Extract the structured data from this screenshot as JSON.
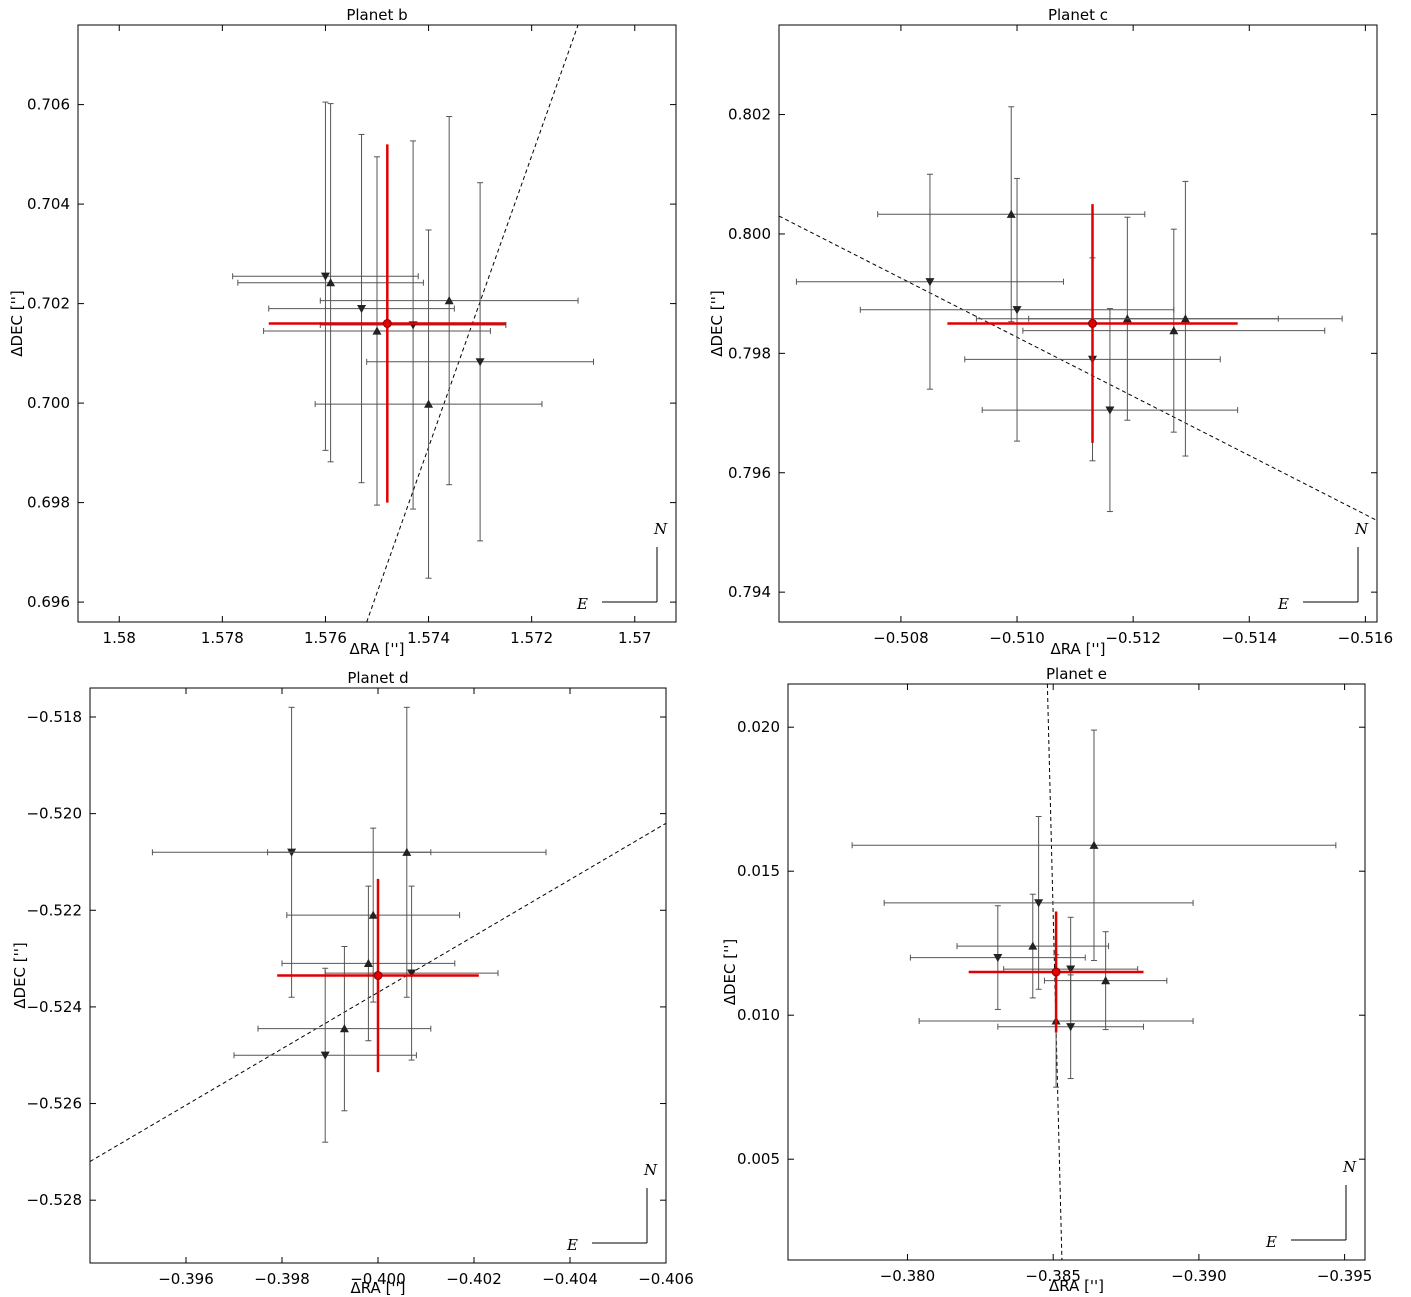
{
  "chart_data": [
    {
      "type": "scatter",
      "title": "Planet b",
      "xlabel": "ΔRA ['']",
      "ylabel": "ΔDEC ['']",
      "xlim": [
        1.5808,
        1.5692
      ],
      "ylim": [
        0.6956,
        0.7076
      ],
      "xticks": [
        1.58,
        1.578,
        1.576,
        1.574,
        1.572,
        1.57
      ],
      "xtick_labels": [
        "1.58",
        "1.578",
        "1.576",
        "1.574",
        "1.572",
        "1.57"
      ],
      "yticks": [
        0.696,
        0.698,
        0.7,
        0.702,
        0.704,
        0.706
      ],
      "ytick_labels": [
        "0.696",
        "0.698",
        "0.700",
        "0.702",
        "0.704",
        "0.706"
      ],
      "compass": {
        "north": "N",
        "east": "E"
      },
      "mean": {
        "x": 1.5748,
        "y": 0.7016,
        "xerr": 0.0023,
        "yerr": 0.0036
      },
      "line": {
        "x1": 1.5752,
        "y1": 0.6956,
        "x2": 1.5711,
        "y2": 0.7076
      },
      "series": [
        {
          "marker": "down",
          "x": 1.576,
          "y": 0.70255,
          "xerr": 0.0018,
          "yerr": 0.0035
        },
        {
          "marker": "up",
          "x": 1.5759,
          "y": 0.70242,
          "xerr": 0.0018,
          "yerr": 0.0036
        },
        {
          "marker": "down",
          "x": 1.5753,
          "y": 0.7019,
          "xerr": 0.0018,
          "yerr": 0.0035
        },
        {
          "marker": "up",
          "x": 1.575,
          "y": 0.70145,
          "xerr": 0.0022,
          "yerr": 0.0035
        },
        {
          "marker": "down",
          "x": 1.5743,
          "y": 0.70157,
          "xerr": 0.0018,
          "yerr": 0.0037
        },
        {
          "marker": "up",
          "x": 1.5736,
          "y": 0.70206,
          "xerr": 0.0025,
          "yerr": 0.0037
        },
        {
          "marker": "down",
          "x": 1.573,
          "y": 0.70083,
          "xerr": 0.0022,
          "yerr": 0.0036
        },
        {
          "marker": "up",
          "x": 1.574,
          "y": 0.69998,
          "xerr": 0.0022,
          "yerr": 0.0035
        }
      ]
    },
    {
      "type": "scatter",
      "title": "Planet c",
      "xlabel": "ΔRA ['']",
      "ylabel": "ΔDEC ['']",
      "xlim": [
        -0.5059,
        -0.5162
      ],
      "ylim": [
        0.7935,
        0.8035
      ],
      "xticks": [
        -0.508,
        -0.51,
        -0.512,
        -0.514,
        -0.516
      ],
      "xtick_labels": [
        "−0.508",
        "−0.510",
        "−0.512",
        "−0.514",
        "−0.516"
      ],
      "yticks": [
        0.794,
        0.796,
        0.798,
        0.8,
        0.802
      ],
      "ytick_labels": [
        "0.794",
        "0.796",
        "0.798",
        "0.800",
        "0.802"
      ],
      "compass": {
        "north": "N",
        "east": "E"
      },
      "mean": {
        "x": -0.5113,
        "y": 0.7985,
        "xerr": 0.0025,
        "yerr": 0.002
      },
      "line": {
        "x1": -0.5059,
        "y1": 0.8003,
        "x2": -0.5162,
        "y2": 0.7952
      },
      "series": [
        {
          "marker": "up",
          "x": -0.5099,
          "y": 0.80033,
          "xerr": 0.0023,
          "yerr": 0.0018
        },
        {
          "marker": "down",
          "x": -0.5085,
          "y": 0.7992,
          "xerr": 0.0023,
          "yerr": 0.0018
        },
        {
          "marker": "down",
          "x": -0.51,
          "y": 0.79873,
          "xerr": 0.0027,
          "yerr": 0.0022
        },
        {
          "marker": "down",
          "x": -0.5113,
          "y": 0.7979,
          "xerr": 0.0022,
          "yerr": 0.0017
        },
        {
          "marker": "down",
          "x": -0.5116,
          "y": 0.79705,
          "xerr": 0.0022,
          "yerr": 0.0017
        },
        {
          "marker": "up",
          "x": -0.5119,
          "y": 0.79858,
          "xerr": 0.0026,
          "yerr": 0.0017
        },
        {
          "marker": "up",
          "x": -0.5127,
          "y": 0.79838,
          "xerr": 0.0026,
          "yerr": 0.0017
        },
        {
          "marker": "up",
          "x": -0.5129,
          "y": 0.79858,
          "xerr": 0.0027,
          "yerr": 0.0023
        }
      ]
    },
    {
      "type": "scatter",
      "title": "Planet d",
      "xlabel": "ΔRA ['']",
      "ylabel": "ΔDEC ['']",
      "xlim": [
        -0.394,
        -0.406
      ],
      "ylim": [
        -0.5293,
        -0.5174
      ],
      "xticks": [
        -0.396,
        -0.398,
        -0.4,
        -0.402,
        -0.404,
        -0.406
      ],
      "xtick_labels": [
        "−0.396",
        "−0.398",
        "−0.400",
        "−0.402",
        "−0.404",
        "−0.406"
      ],
      "yticks": [
        -0.528,
        -0.526,
        -0.524,
        -0.522,
        -0.52,
        -0.518
      ],
      "ytick_labels": [
        "−0.528",
        "−0.526",
        "−0.524",
        "−0.522",
        "−0.520",
        "−0.518"
      ],
      "compass": {
        "north": "N",
        "east": "E"
      },
      "mean": {
        "x": -0.4,
        "y": -0.52335,
        "xerr": 0.0021,
        "yerr": 0.002
      },
      "line": {
        "x1": -0.394,
        "y1": -0.5272,
        "x2": -0.406,
        "y2": -0.5202
      },
      "series": [
        {
          "marker": "down",
          "x": -0.3982,
          "y": -0.5208,
          "xerr": 0.0029,
          "yerr": 0.003
        },
        {
          "marker": "up",
          "x": -0.4006,
          "y": -0.5208,
          "xerr": 0.0029,
          "yerr": 0.003
        },
        {
          "marker": "up",
          "x": -0.3999,
          "y": -0.5221,
          "xerr": 0.0018,
          "yerr": 0.0018
        },
        {
          "marker": "up",
          "x": -0.3998,
          "y": -0.5231,
          "xerr": 0.0018,
          "yerr": 0.0016
        },
        {
          "marker": "down",
          "x": -0.4007,
          "y": -0.5233,
          "xerr": 0.0018,
          "yerr": 0.0018
        },
        {
          "marker": "up",
          "x": -0.3993,
          "y": -0.52445,
          "xerr": 0.0018,
          "yerr": 0.0017
        },
        {
          "marker": "down",
          "x": -0.3989,
          "y": -0.525,
          "xerr": 0.0019,
          "yerr": 0.0018
        }
      ]
    },
    {
      "type": "scatter",
      "title": "Planet e",
      "xlabel": "ΔRA ['']",
      "ylabel": "ΔDEC ['']",
      "xlim": [
        -0.3759,
        -0.3957
      ],
      "ylim": [
        0.0015,
        0.0215
      ],
      "xticks": [
        -0.38,
        -0.385,
        -0.39,
        -0.395
      ],
      "xtick_labels": [
        "−0.380",
        "−0.385",
        "−0.390",
        "−0.395"
      ],
      "yticks": [
        0.005,
        0.01,
        0.015,
        0.02
      ],
      "ytick_labels": [
        "0.005",
        "0.010",
        "0.015",
        "0.020"
      ],
      "compass": {
        "north": "N",
        "east": "E"
      },
      "mean": {
        "x": -0.3851,
        "y": 0.0115,
        "xerr": 0.003,
        "yerr": 0.0021
      },
      "line": {
        "x1": -0.3848,
        "y1": 0.0215,
        "x2": -0.3853,
        "y2": 0.0015
      },
      "series": [
        {
          "marker": "up",
          "x": -0.3864,
          "y": 0.0159,
          "xerr": 0.0083,
          "yerr": 0.004
        },
        {
          "marker": "down",
          "x": -0.3845,
          "y": 0.0139,
          "xerr": 0.0053,
          "yerr": 0.003
        },
        {
          "marker": "up",
          "x": -0.3843,
          "y": 0.0124,
          "xerr": 0.0026,
          "yerr": 0.0018
        },
        {
          "marker": "down",
          "x": -0.3831,
          "y": 0.012,
          "xerr": 0.003,
          "yerr": 0.0018
        },
        {
          "marker": "down",
          "x": -0.3856,
          "y": 0.0116,
          "xerr": 0.0023,
          "yerr": 0.0018
        },
        {
          "marker": "up",
          "x": -0.3868,
          "y": 0.0112,
          "xerr": 0.0021,
          "yerr": 0.0017
        },
        {
          "marker": "up",
          "x": -0.3851,
          "y": 0.0098,
          "xerr": 0.0047,
          "yerr": 0.0023
        },
        {
          "marker": "down",
          "x": -0.3856,
          "y": 0.0096,
          "xerr": 0.0025,
          "yerr": 0.0018
        }
      ]
    }
  ]
}
